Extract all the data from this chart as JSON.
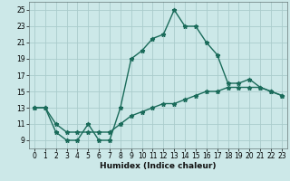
{
  "title": "",
  "xlabel": "Humidex (Indice chaleur)",
  "bg_color": "#cce8e8",
  "grid_color": "#aacccc",
  "line_color": "#1a6b5a",
  "xlim": [
    -0.5,
    23.5
  ],
  "ylim": [
    8.0,
    26.0
  ],
  "xticks": [
    0,
    1,
    2,
    3,
    4,
    5,
    6,
    7,
    8,
    9,
    10,
    11,
    12,
    13,
    14,
    15,
    16,
    17,
    18,
    19,
    20,
    21,
    22,
    23
  ],
  "yticks": [
    9,
    11,
    13,
    15,
    17,
    19,
    21,
    23,
    25
  ],
  "line1_x": [
    0,
    1,
    2,
    3,
    4,
    5,
    6,
    7,
    8,
    9,
    10,
    11,
    12,
    13,
    14,
    15,
    16,
    17,
    18,
    19,
    20,
    21,
    22,
    23
  ],
  "line1_y": [
    13,
    13,
    10,
    9,
    9,
    11,
    9,
    9,
    13,
    19,
    20,
    21.5,
    22,
    25,
    23,
    23,
    21,
    19.5,
    16,
    16,
    16.5,
    15.5,
    15,
    14.5
  ],
  "line2_x": [
    0,
    1,
    2,
    3,
    4,
    5,
    6,
    7,
    8,
    9,
    10,
    11,
    12,
    13,
    14,
    15,
    16,
    17,
    18,
    19,
    20,
    21,
    22,
    23
  ],
  "line2_y": [
    13,
    13,
    11,
    10,
    10,
    10,
    10,
    10,
    11,
    12,
    12.5,
    13,
    13.5,
    13.5,
    14,
    14.5,
    15,
    15,
    15.5,
    15.5,
    15.5,
    15.5,
    15,
    14.5
  ],
  "tick_fontsize": 5.5,
  "xlabel_fontsize": 6.5,
  "marker_size": 3.5,
  "linewidth": 1.0
}
